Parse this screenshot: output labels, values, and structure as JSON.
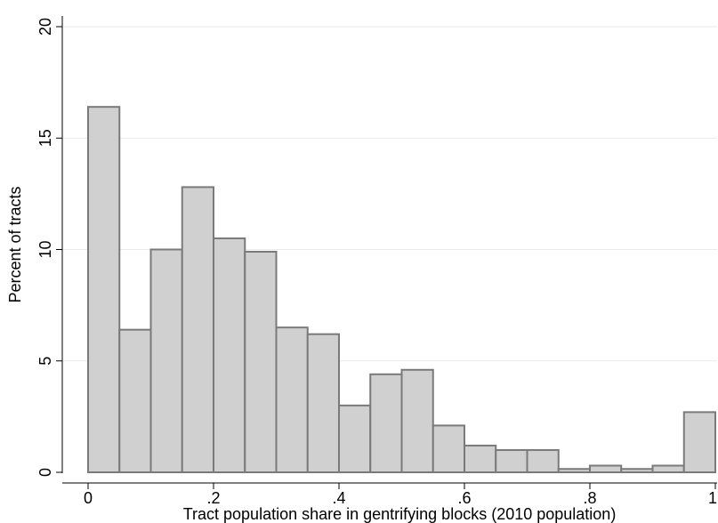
{
  "chart_data": {
    "type": "bar",
    "xlabel": "Tract population share in gentrifying blocks (2010 population)",
    "ylabel": "Percent of tracts",
    "xlim": [
      0,
      1
    ],
    "ylim": [
      0,
      20
    ],
    "grid": true,
    "bin_width": 0.05,
    "x_ticks": [
      {
        "value": 0,
        "label": "0"
      },
      {
        "value": 0.2,
        "label": ".2"
      },
      {
        "value": 0.4,
        "label": ".4"
      },
      {
        "value": 0.6,
        "label": ".6"
      },
      {
        "value": 0.8,
        "label": ".8"
      },
      {
        "value": 1,
        "label": "1"
      }
    ],
    "y_ticks": [
      {
        "value": 0,
        "label": "0"
      },
      {
        "value": 5,
        "label": "5"
      },
      {
        "value": 10,
        "label": "10"
      },
      {
        "value": 15,
        "label": "15"
      },
      {
        "value": 20,
        "label": "20"
      }
    ],
    "bins": [
      {
        "x_start": 0.0,
        "value": 16.4
      },
      {
        "x_start": 0.05,
        "value": 6.4
      },
      {
        "x_start": 0.1,
        "value": 10.0
      },
      {
        "x_start": 0.15,
        "value": 12.8
      },
      {
        "x_start": 0.2,
        "value": 10.5
      },
      {
        "x_start": 0.25,
        "value": 9.9
      },
      {
        "x_start": 0.3,
        "value": 6.5
      },
      {
        "x_start": 0.35,
        "value": 6.2
      },
      {
        "x_start": 0.4,
        "value": 3.0
      },
      {
        "x_start": 0.45,
        "value": 4.4
      },
      {
        "x_start": 0.5,
        "value": 4.6
      },
      {
        "x_start": 0.55,
        "value": 2.1
      },
      {
        "x_start": 0.6,
        "value": 1.2
      },
      {
        "x_start": 0.65,
        "value": 1.0
      },
      {
        "x_start": 0.7,
        "value": 1.0
      },
      {
        "x_start": 0.75,
        "value": 0.15
      },
      {
        "x_start": 0.8,
        "value": 0.3
      },
      {
        "x_start": 0.85,
        "value": 0.15
      },
      {
        "x_start": 0.9,
        "value": 0.3
      },
      {
        "x_start": 0.95,
        "value": 2.7
      }
    ]
  }
}
